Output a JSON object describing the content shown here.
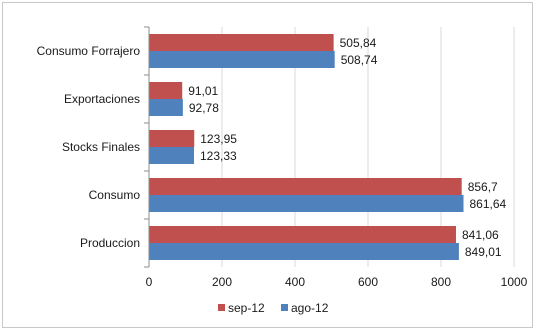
{
  "chart_data": {
    "type": "bar",
    "orientation": "horizontal",
    "categories": [
      "Consumo Forrajero",
      "Exportaciones",
      "Stocks Finales",
      "Consumo",
      "Produccion"
    ],
    "series": [
      {
        "name": "sep-12",
        "color": "#c0504d",
        "values": [
          505.84,
          91.01,
          123.95,
          856.7,
          841.06
        ],
        "labels": [
          "505,84",
          "91,01",
          "123,95",
          "856,7",
          "841,06"
        ]
      },
      {
        "name": "ago-12",
        "color": "#4f81bd",
        "values": [
          508.74,
          92.78,
          123.33,
          861.64,
          849.01
        ],
        "labels": [
          "508,74",
          "92,78",
          "123,33",
          "861,64",
          "849,01"
        ]
      }
    ],
    "xlim": [
      0,
      1000
    ],
    "xticks": [
      0,
      200,
      400,
      600,
      800,
      1000
    ],
    "xtick_labels": [
      "0",
      "200",
      "400",
      "600",
      "800",
      "1000"
    ],
    "grid": true,
    "legend_position": "bottom"
  }
}
